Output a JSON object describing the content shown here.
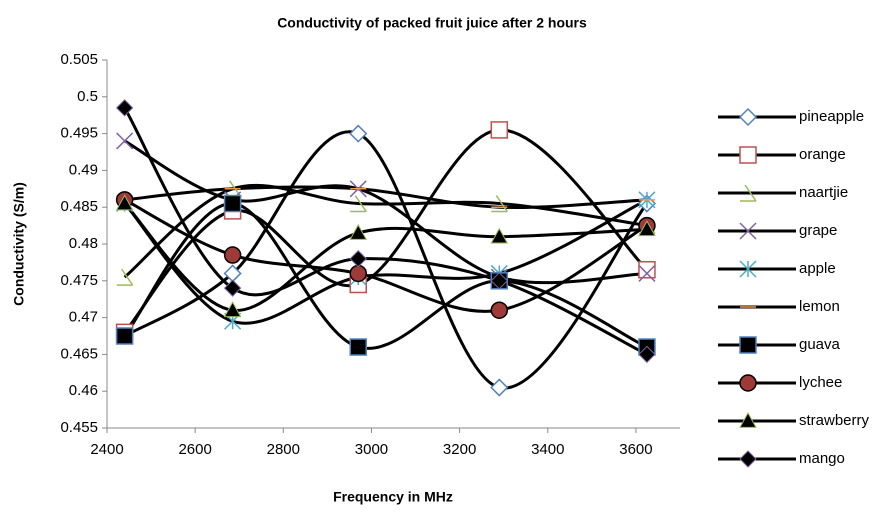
{
  "chart_data": {
    "type": "line",
    "title": "Conductivity of packed fruit juice after 2 hours",
    "x_label": "Frequency in MHz",
    "y_label": "Conductivity (S/m)",
    "x": [
      2440,
      2685,
      2970,
      3290,
      3625
    ],
    "xlim": [
      2400,
      3700
    ],
    "xticks": [
      2400,
      2600,
      2800,
      3000,
      3200,
      3400,
      3600
    ],
    "ylim": [
      0.455,
      0.505
    ],
    "yticks": [
      0.455,
      0.46,
      0.465,
      0.47,
      0.475,
      0.48,
      0.485,
      0.49,
      0.495,
      0.5,
      0.505
    ],
    "smooth": true,
    "line_color": "#000000",
    "legend": "right",
    "series": [
      {
        "name": "pineapple",
        "color": "#4f81bd",
        "marker": "diamond-open",
        "values": [
          0.4675,
          0.476,
          0.495,
          0.4605,
          0.4855
        ]
      },
      {
        "name": "orange",
        "color": "#c0504d",
        "marker": "square-open",
        "values": [
          0.468,
          0.4845,
          0.4745,
          0.4955,
          0.4765
        ]
      },
      {
        "name": "naartjie",
        "color": "#9bbb59",
        "marker": "check",
        "values": [
          0.4755,
          0.4875,
          0.4855,
          0.4855,
          0.4825
        ]
      },
      {
        "name": "grape",
        "color": "#8064a2",
        "marker": "x",
        "values": [
          0.494,
          0.486,
          0.4875,
          0.4755,
          0.476
        ]
      },
      {
        "name": "apple",
        "color": "#4bacc6",
        "marker": "asterisk",
        "values": [
          0.4855,
          0.4695,
          0.4755,
          0.476,
          0.486
        ]
      },
      {
        "name": "lemon",
        "color": "#f79646",
        "marker": "dash",
        "values": [
          0.486,
          0.4875,
          0.4875,
          0.485,
          0.486
        ]
      },
      {
        "name": "guava",
        "color": "#4f81bd",
        "marker": "square",
        "values": [
          0.4675,
          0.4855,
          0.466,
          0.475,
          0.466
        ]
      },
      {
        "name": "lychee",
        "color": "#9e3b38",
        "marker": "circle",
        "values": [
          0.486,
          0.4785,
          0.476,
          0.471,
          0.4825
        ]
      },
      {
        "name": "strawberry",
        "color": "#9bbb59",
        "marker": "triangle",
        "values": [
          0.4855,
          0.471,
          0.4815,
          0.481,
          0.482
        ]
      },
      {
        "name": "mango",
        "color": "#8064a2",
        "marker": "diamond",
        "values": [
          0.4985,
          0.474,
          0.478,
          0.475,
          0.465
        ]
      }
    ]
  }
}
